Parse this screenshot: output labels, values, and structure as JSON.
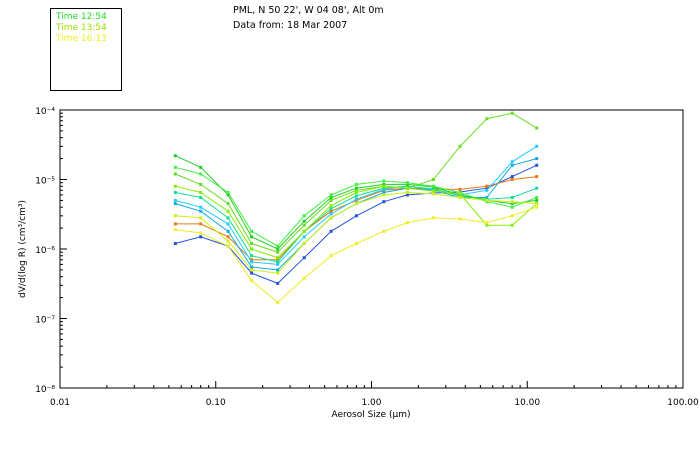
{
  "header": {
    "location": "PML, N 50 22', W 04 08', Alt 0m",
    "date": "Data from: 18 Mar 2007"
  },
  "legend": {
    "entries": [
      {
        "label": "Time 12:54",
        "color": "#22dd22"
      },
      {
        "label": "Time 13:54",
        "color": "#99dd00"
      },
      {
        "label": "Time 16:13",
        "color": "#eeee22"
      }
    ]
  },
  "chart_data": {
    "type": "line",
    "xlabel": "Aerosol Size (μm)",
    "ylabel": "dV/d(log R) (cm³/cm³)",
    "xscale": "log",
    "yscale": "log",
    "xlim": [
      0.01,
      100
    ],
    "ylim": [
      1e-08,
      0.0001
    ],
    "xticks": [
      "0.01",
      "0.10",
      "1.00",
      "10.00",
      "100.00"
    ],
    "yticks": [
      "10⁻⁸",
      "10⁻⁷",
      "10⁻⁶",
      "10⁻⁵",
      "10⁻⁴"
    ],
    "x": [
      0.055,
      0.08,
      0.12,
      0.17,
      0.25,
      0.37,
      0.55,
      0.8,
      1.2,
      1.7,
      2.5,
      3.7,
      5.5,
      8.0,
      11.5
    ],
    "series": [
      {
        "color": "#2255dd",
        "values": [
          1.2e-06,
          1.5e-06,
          1.1e-06,
          4.5e-07,
          3.2e-07,
          7.5e-07,
          1.8e-06,
          3e-06,
          4.8e-06,
          6e-06,
          6.4e-06,
          6.6e-06,
          7.5e-06,
          1.1e-05,
          1.6e-05
        ]
      },
      {
        "color": "#ee7711",
        "values": [
          2.3e-06,
          2.3e-06,
          1.5e-06,
          7e-07,
          7e-07,
          1.8e-06,
          3.5e-06,
          5e-06,
          7e-06,
          7.5e-06,
          7.3e-06,
          7.2e-06,
          8e-06,
          1e-05,
          1.1e-05
        ]
      },
      {
        "color": "#11aadd",
        "values": [
          4.5e-06,
          3.5e-06,
          1.8e-06,
          5.5e-07,
          5e-07,
          1.2e-06,
          2.8e-06,
          4.5e-06,
          6.5e-06,
          7.5e-06,
          7e-06,
          5.5e-06,
          5.5e-06,
          1.6e-05,
          2e-05
        ]
      },
      {
        "color": "#22ccff",
        "values": [
          5e-06,
          4e-06,
          2.3e-06,
          6.5e-07,
          6e-07,
          1.5e-06,
          3.2e-06,
          5.2e-06,
          7.2e-06,
          8e-06,
          7.2e-06,
          6e-06,
          7e-06,
          1.8e-05,
          3e-05
        ]
      },
      {
        "color": "#11dd99",
        "values": [
          6.5e-06,
          5.5e-06,
          2.8e-06,
          8e-07,
          6.5e-07,
          1.8e-06,
          3.8e-06,
          5.8e-06,
          7.5e-06,
          8e-06,
          7.3e-06,
          5.8e-06,
          5.2e-06,
          5.5e-06,
          7.5e-06
        ]
      },
      {
        "color": "#22cc22",
        "values": [
          2.2e-05,
          1.5e-05,
          6e-06,
          1.5e-06,
          1e-06,
          2.5e-06,
          5.5e-06,
          7.5e-06,
          8.5e-06,
          8.5e-06,
          7.8e-06,
          6e-06,
          5e-06,
          4.5e-06,
          5e-06
        ]
      },
      {
        "color": "#44ee44",
        "values": [
          1.5e-05,
          1.2e-05,
          6.5e-06,
          1.8e-06,
          1.1e-06,
          3e-06,
          6e-06,
          8.5e-06,
          9.5e-06,
          9e-06,
          8e-06,
          6.5e-06,
          4.8e-06,
          4e-06,
          5.5e-06
        ]
      },
      {
        "color": "#66dd22",
        "values": [
          1.2e-05,
          8.5e-06,
          4.5e-06,
          1.2e-06,
          9e-07,
          2.2e-06,
          5e-06,
          7e-06,
          8e-06,
          7.5e-06,
          1e-05,
          3e-05,
          7.5e-05,
          9e-05,
          5.5e-05
        ]
      },
      {
        "color": "#88ee00",
        "values": [
          8e-06,
          6.5e-06,
          3.5e-06,
          1e-06,
          7.5e-07,
          1.8e-06,
          4.2e-06,
          6.5e-06,
          8e-06,
          7.5e-06,
          6.8e-06,
          6.2e-06,
          2.2e-06,
          2.2e-06,
          4.5e-06
        ]
      },
      {
        "color": "#ccee11",
        "values": [
          3e-06,
          2.8e-06,
          1.3e-06,
          5e-07,
          4.5e-07,
          1.2e-06,
          2.8e-06,
          4.5e-06,
          6e-06,
          6.5e-06,
          6.2e-06,
          5.5e-06,
          5e-06,
          4.8e-06,
          4.5e-06
        ]
      },
      {
        "color": "#eeee22",
        "values": [
          1.9e-06,
          1.7e-06,
          1.1e-06,
          3.5e-07,
          1.7e-07,
          3.8e-07,
          8e-07,
          1.2e-06,
          1.8e-06,
          2.4e-06,
          2.8e-06,
          2.7e-06,
          2.4e-06,
          3e-06,
          4e-06
        ]
      }
    ]
  }
}
